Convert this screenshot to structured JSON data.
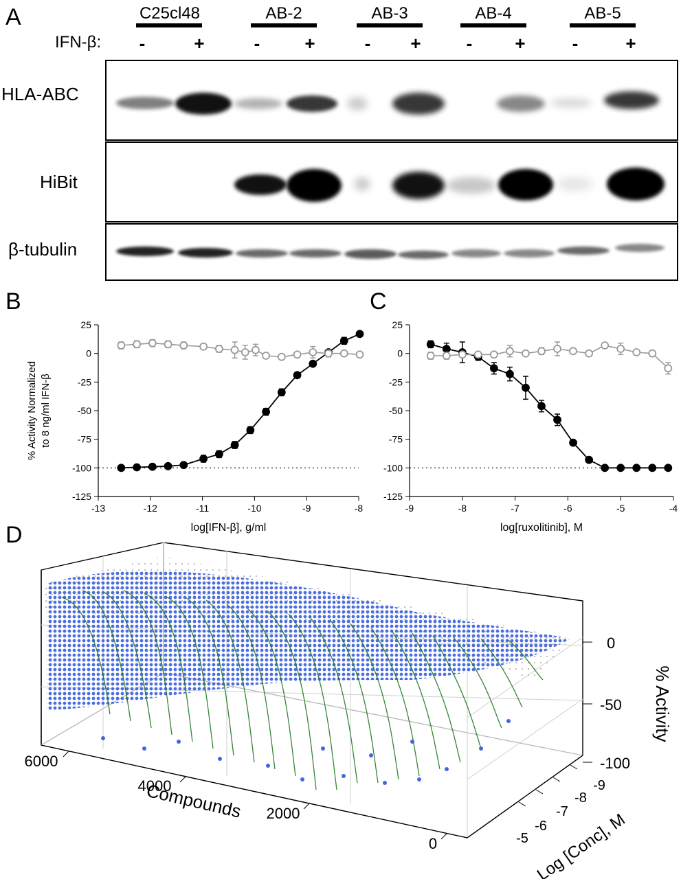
{
  "panel_a": {
    "label": "A",
    "treatment_label": "IFN-β:",
    "lanes": [
      "C25cl48",
      "AB-2",
      "AB-3",
      "AB-4",
      "AB-5"
    ],
    "signs": [
      "-",
      "+",
      "-",
      "+",
      "-",
      "+",
      "-",
      "+",
      "-",
      "+"
    ],
    "rows": [
      "HLA-ABC",
      "HiBit",
      "β-tubulin"
    ]
  },
  "panel_b": {
    "label": "B"
  },
  "panel_c": {
    "label": "C"
  },
  "panel_d": {
    "label": "D",
    "x_label": "Compounds",
    "y_label": "Log [Conc], M",
    "z_label": "% Activity",
    "compound_ticks": [
      "6000",
      "4000",
      "2000",
      "0"
    ],
    "conc_ticks": [
      "-5",
      "-6",
      "-7",
      "-8",
      "-9"
    ],
    "activity_ticks": [
      "0",
      "-50",
      "-100"
    ]
  },
  "chart_data": [
    {
      "type": "scatter",
      "panel": "B",
      "title": "",
      "xlabel": "log[IFN-β], g/ml",
      "ylabel": "% Activity Normalized to 8 ng/ml IFN-β",
      "ylabel_lines": [
        "% Activity Normalized",
        "to 8 ng/ml IFN-β"
      ],
      "xlim": [
        -13,
        -8
      ],
      "ylim": [
        -125,
        25
      ],
      "x_ticks": [
        "-13",
        "-12",
        "-11",
        "-10",
        "-9",
        "-8"
      ],
      "y_ticks": [
        "25",
        "0",
        "-25",
        "-50",
        "-75",
        "-100",
        "-125"
      ],
      "reference_line": -100,
      "series": [
        {
          "name": "filled",
          "color": "#000000",
          "x": [
            -12.56,
            -12.26,
            -11.96,
            -11.66,
            -11.36,
            -10.98,
            -10.68,
            -10.38,
            -10.08,
            -9.78,
            -9.48,
            -9.18,
            -8.88,
            -8.58,
            -8.28,
            -7.98
          ],
          "y": [
            -100,
            -99.5,
            -99,
            -98.5,
            -97.5,
            -92,
            -88,
            -80,
            -67,
            -51,
            -34,
            -19,
            -9,
            1,
            11,
            17
          ],
          "err": [
            1,
            1,
            1,
            1,
            1,
            3,
            3,
            3,
            3,
            3,
            3,
            2,
            2,
            2,
            3,
            1
          ]
        },
        {
          "name": "open",
          "color": "#999999",
          "x": [
            -12.56,
            -12.26,
            -11.96,
            -11.66,
            -11.36,
            -10.98,
            -10.68,
            -10.38,
            -10.18,
            -9.98,
            -9.78,
            -9.48,
            -9.18,
            -8.88,
            -8.58,
            -8.28,
            -7.98
          ],
          "y": [
            7,
            8,
            9,
            8,
            7,
            6,
            4,
            3,
            1,
            3,
            -2,
            -3,
            -1,
            1,
            0,
            0,
            -1
          ],
          "err": [
            3,
            3,
            3,
            3,
            3,
            2,
            3,
            7,
            6,
            5,
            2,
            2,
            2,
            5,
            3,
            2,
            1
          ]
        }
      ]
    },
    {
      "type": "scatter",
      "panel": "C",
      "title": "",
      "xlabel": "log[ruxolitinib], M",
      "ylabel": "",
      "xlim": [
        -9,
        -4
      ],
      "ylim": [
        -125,
        25
      ],
      "x_ticks": [
        "-9",
        "-8",
        "-7",
        "-6",
        "-5",
        "-4"
      ],
      "y_ticks": [
        "25",
        "0",
        "-25",
        "-50",
        "-75",
        "-100",
        "-125"
      ],
      "reference_line": -100,
      "series": [
        {
          "name": "filled",
          "color": "#000000",
          "x": [
            -8.6,
            -8.3,
            -8.0,
            -7.7,
            -7.4,
            -7.1,
            -6.8,
            -6.5,
            -6.2,
            -5.9,
            -5.6,
            -5.3,
            -5.0,
            -4.7,
            -4.4,
            -4.1
          ],
          "y": [
            8,
            4,
            1,
            -3,
            -13,
            -18,
            -30,
            -46,
            -58,
            -78,
            -93,
            -100,
            -100,
            -100,
            -100,
            -100
          ],
          "err": [
            3,
            5,
            9,
            3,
            5,
            6,
            10,
            5,
            5,
            2,
            1,
            1,
            1,
            1,
            1,
            1
          ]
        },
        {
          "name": "open",
          "color": "#999999",
          "x": [
            -8.6,
            -8.3,
            -8.0,
            -7.7,
            -7.4,
            -7.1,
            -6.8,
            -6.5,
            -6.2,
            -5.9,
            -5.6,
            -5.3,
            -5.0,
            -4.7,
            -4.4,
            -4.1
          ],
          "y": [
            -2,
            -2,
            -1,
            -1,
            -1,
            2,
            0,
            2,
            4,
            2,
            0,
            7,
            4,
            1,
            0,
            -13
          ],
          "err": [
            3,
            3,
            2,
            2,
            2,
            5,
            2,
            3,
            6,
            2,
            2,
            2,
            5,
            2,
            2,
            5
          ]
        }
      ]
    }
  ]
}
